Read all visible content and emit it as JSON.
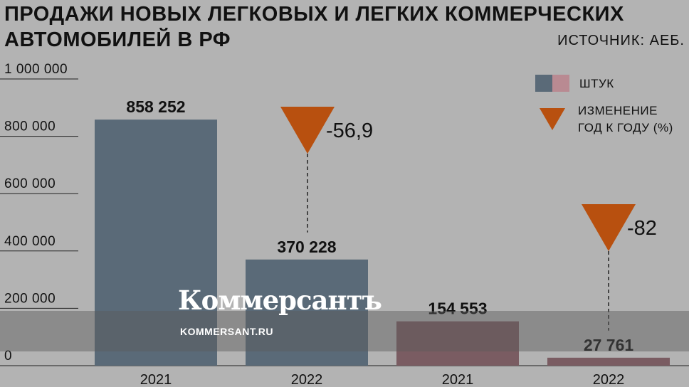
{
  "title": "ПРОДАЖИ НОВЫХ ЛЕГКОВЫХ И ЛЕГКИХ КОММЕРЧЕСКИХ АВТОМОБИЛЕЙ В РФ",
  "source": "ИСТОЧНИК: АЕБ.",
  "watermark": {
    "logo": "Коммерсантъ",
    "url": "KOMMERSANT.RU"
  },
  "legend": {
    "units_label": "ШТУК",
    "change_label_line1": "ИЗМЕНЕНИЕ",
    "change_label_line2": "ГОД К ГОДУ (%)"
  },
  "colors": {
    "blue_bar": "#5a6a78",
    "pink_bar": "#7a5c62",
    "accent": "#b8500f",
    "background": "#b3b3b3"
  },
  "chart_data": {
    "type": "bar",
    "categories": [
      "2021",
      "2022",
      "2021",
      "2022"
    ],
    "values": [
      858252,
      370228,
      154553,
      27761
    ],
    "value_labels": [
      "858 252",
      "370 228",
      "154 553",
      "27 761"
    ],
    "bar_colors": [
      "blue",
      "blue",
      "pink",
      "pink"
    ],
    "ylim": [
      0,
      1000000
    ],
    "yticks": [
      0,
      200000,
      400000,
      600000,
      800000,
      1000000
    ],
    "ytick_labels": [
      "0",
      "200 000",
      "400 000",
      "600 000",
      "800 000",
      "1 000 000"
    ],
    "changes": [
      {
        "value": "-56,9",
        "after_bar": 1
      },
      {
        "value": "-82",
        "after_bar": 3
      }
    ]
  }
}
